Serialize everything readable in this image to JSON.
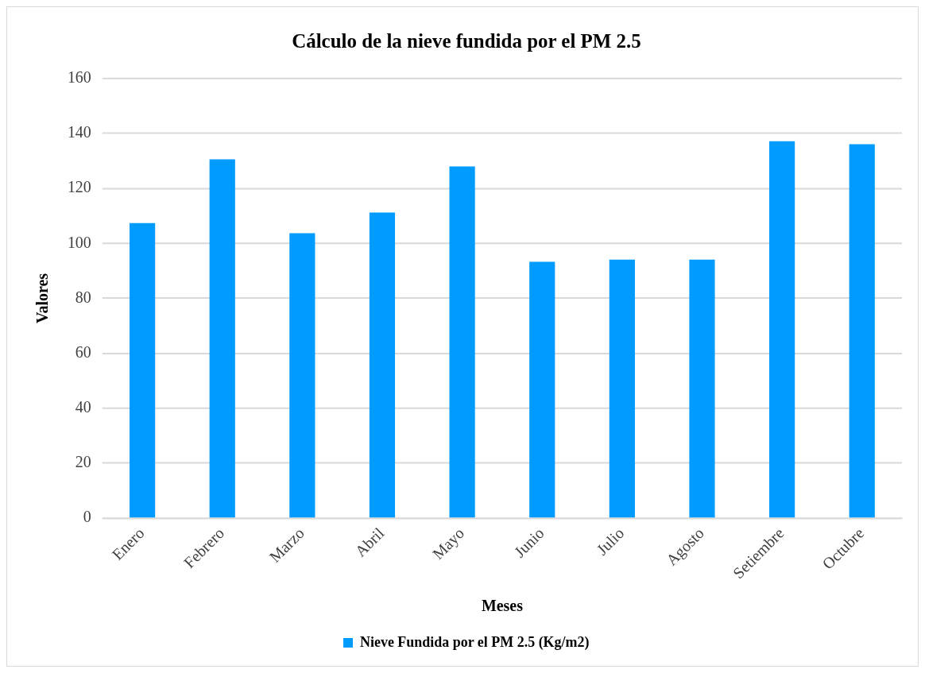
{
  "chart_data": {
    "type": "bar",
    "title": "Cálculo de la nieve fundida por el PM 2.5",
    "xlabel": "Meses",
    "ylabel": "Valores",
    "categories": [
      "Enero",
      "Febrero",
      "Marzo",
      "Abril",
      "Mayo",
      "Junio",
      "Julio",
      "Agosto",
      "Setiembre",
      "Octubre"
    ],
    "series": [
      {
        "name": "Nieve Fundida por el PM 2.5 (Kg/m2)",
        "color": "#009bff",
        "values": [
          107.4,
          130.6,
          103.7,
          111.2,
          128,
          93.3,
          94.1,
          94.1,
          137.2,
          136.1
        ]
      }
    ],
    "ylim": [
      0,
      160
    ],
    "yticks": [
      0,
      20,
      40,
      60,
      80,
      100,
      120,
      140,
      160
    ],
    "grid": "y",
    "legend": "bottom"
  }
}
